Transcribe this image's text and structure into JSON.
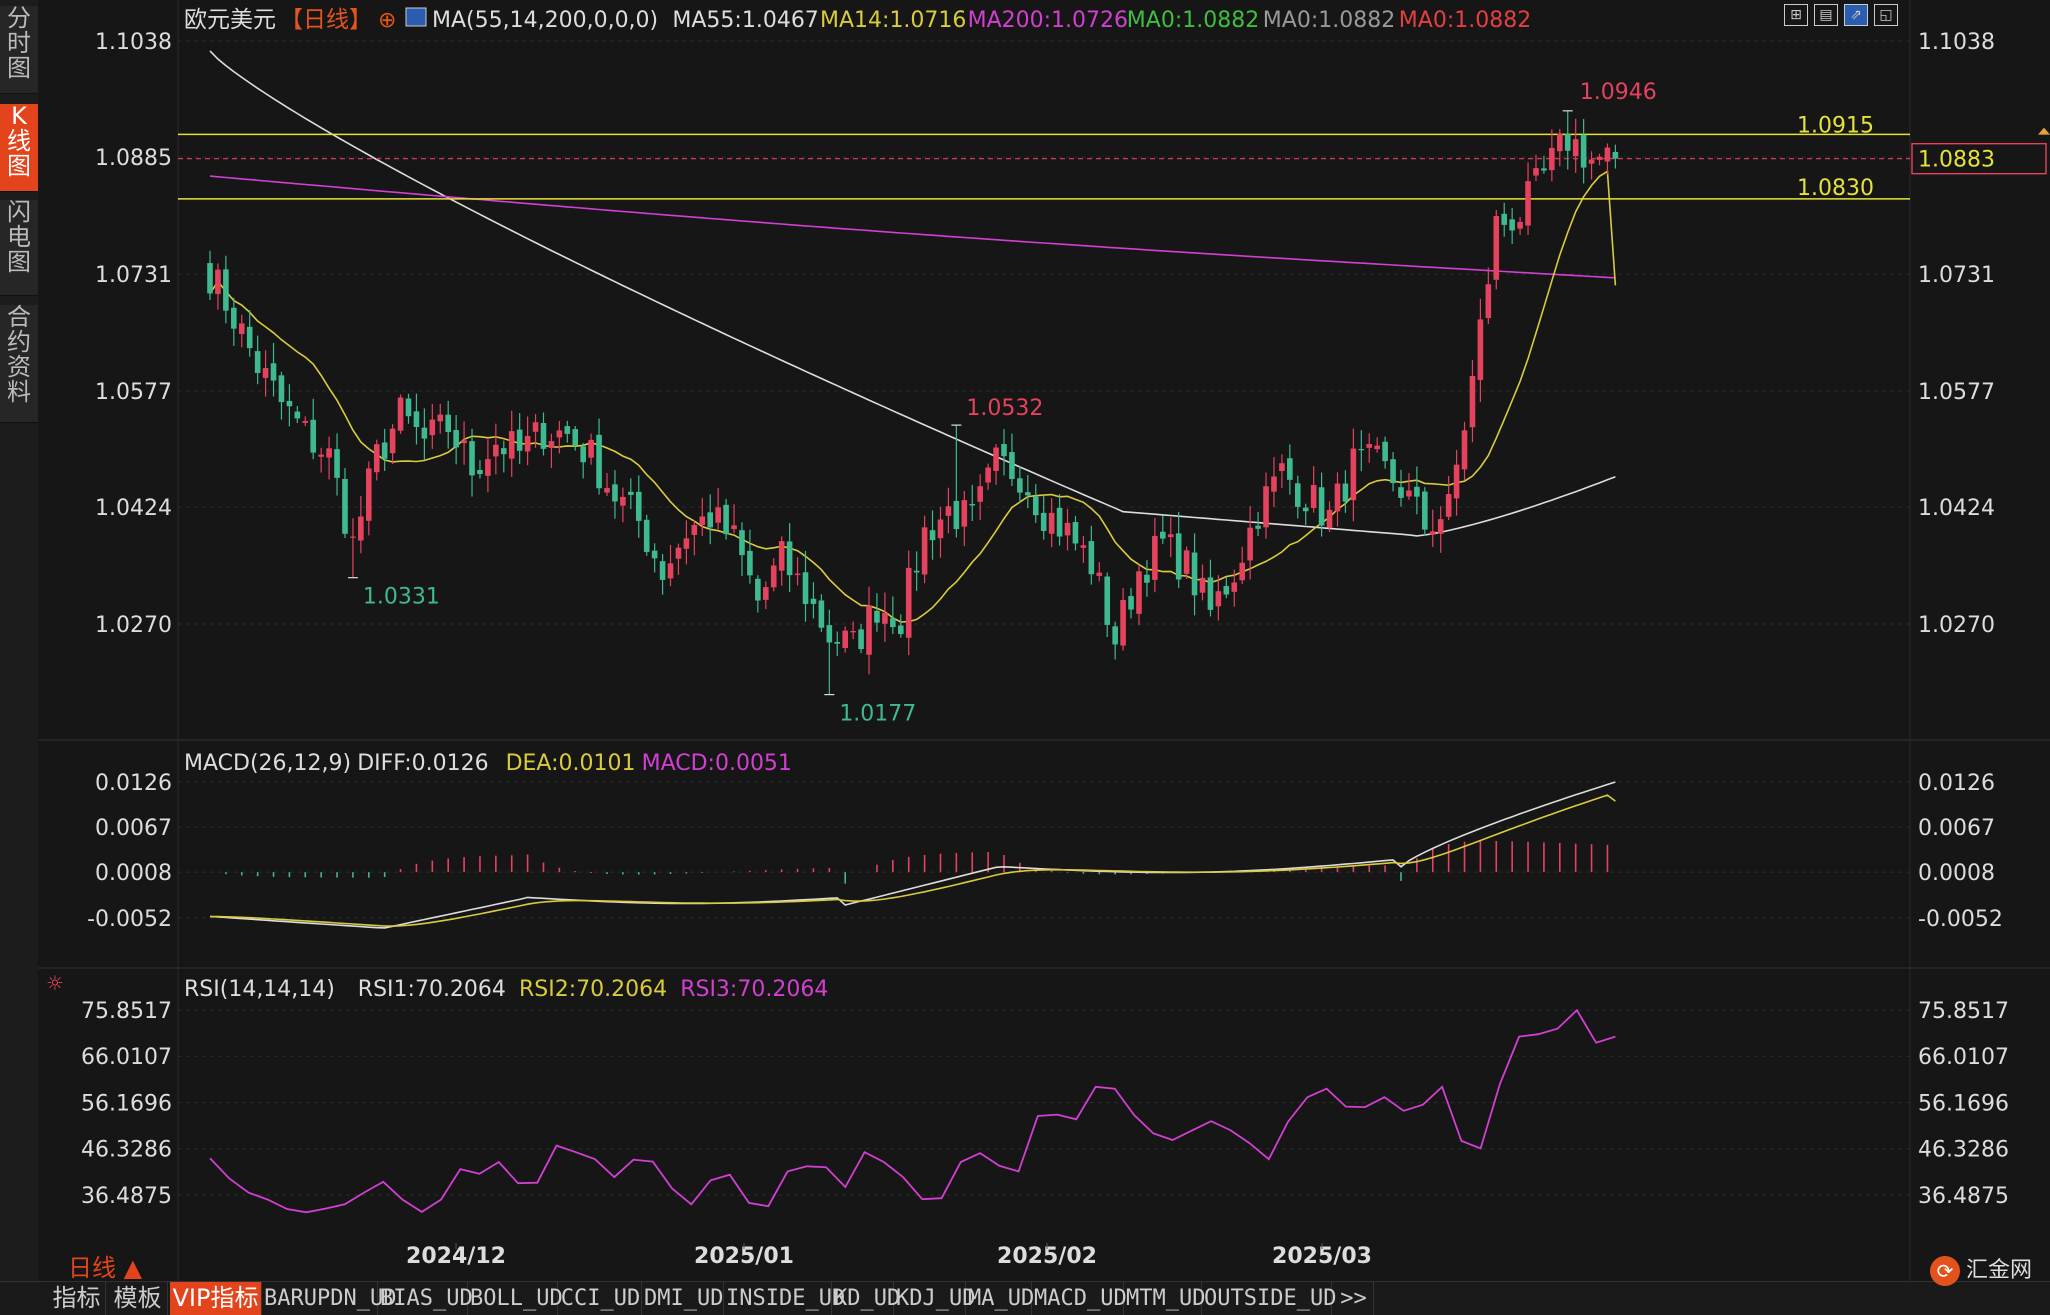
{
  "sidebar": {
    "tabs": [
      {
        "label": "分时图",
        "active": false
      },
      {
        "label": "K线图",
        "active": true
      },
      {
        "label": "闪电图",
        "active": false
      },
      {
        "label": "合约资料",
        "active": false
      }
    ]
  },
  "header": {
    "symbol": "欧元美元",
    "period": "【日线】",
    "ma_params": "MA(55,14,200,0,0,0)",
    "ma55": "MA55:1.0467",
    "ma14": "MA14:1.0716",
    "ma200": "MA200:1.0726",
    "ma0_a": "MA0:1.0882",
    "ma0_b": "MA0:1.0882",
    "ma0_c": "MA0:1.0882"
  },
  "macd_header": {
    "params": "MACD(26,12,9)",
    "diff": "DIFF:0.0126",
    "dea": "DEA:0.0101",
    "macd": "MACD:0.0051"
  },
  "rsi_header": {
    "params": "RSI(14,14,14)",
    "rsi1": "RSI1:70.2064",
    "rsi2": "RSI2:70.2064",
    "rsi3": "RSI3:70.2064"
  },
  "chart_data": [
    {
      "type": "candlestick",
      "price_axis_ticks": [
        "1.1038",
        "1.0885",
        "1.0731",
        "1.0577",
        "1.0424",
        "1.0270"
      ],
      "price_range": [
        1.0177,
        1.1038
      ],
      "current_price": "1.0883",
      "levels": [
        {
          "label": "1.0915",
          "value": 1.0915
        },
        {
          "label": "1.0830",
          "value": 1.083
        }
      ],
      "annotations": [
        {
          "text": "1.0946",
          "value": 1.0946
        },
        {
          "text": "1.0532",
          "value": 1.0532
        },
        {
          "text": "1.0331",
          "value": 1.0331
        },
        {
          "text": "1.0177",
          "value": 1.0177
        }
      ],
      "x_labels": [
        "2024/12",
        "2025/01",
        "2025/02",
        "2025/03"
      ],
      "colors": {
        "up": "#e5425e",
        "down": "#3fb98f",
        "ma55": "#dddddd",
        "ma14": "#d9cc3c",
        "ma200": "#d23fd2",
        "level": "#e6e23a"
      },
      "anchors": [
        [
          0,
          1.0733
        ],
        [
          3,
          1.0675
        ],
        [
          6,
          1.061
        ],
        [
          9,
          1.056
        ],
        [
          12,
          1.052
        ],
        [
          15,
          1.049
        ],
        [
          18,
          1.0375
        ],
        [
          21,
          1.049
        ],
        [
          24,
          1.0545
        ],
        [
          27,
          1.051
        ],
        [
          30,
          1.053
        ],
        [
          33,
          1.0475
        ],
        [
          36,
          1.051
        ],
        [
          39,
          1.0495
        ],
        [
          42,
          1.0525
        ],
        [
          45,
          1.052
        ],
        [
          48,
          1.049
        ],
        [
          51,
          1.044
        ],
        [
          54,
          1.0405
        ],
        [
          57,
          1.034
        ],
        [
          60,
          1.0392
        ],
        [
          63,
          1.0412
        ],
        [
          66,
          1.038
        ],
        [
          69,
          1.03
        ],
        [
          72,
          1.0355
        ],
        [
          75,
          1.031
        ],
        [
          78,
          1.0255
        ],
        [
          81,
          1.024
        ],
        [
          84,
          1.0295
        ],
        [
          87,
          1.028
        ],
        [
          90,
          1.039
        ],
        [
          93,
          1.042
        ],
        [
          96,
          1.0405
        ],
        [
          99,
          1.048
        ],
        [
          102,
          1.047
        ],
        [
          105,
          1.042
        ],
        [
          108,
          1.039
        ],
        [
          111,
          1.035
        ],
        [
          114,
          1.025
        ],
        [
          117,
          1.034
        ],
        [
          120,
          1.0375
        ],
        [
          123,
          1.0345
        ],
        [
          126,
          1.0285
        ],
        [
          129,
          1.034
        ],
        [
          132,
          1.042
        ],
        [
          135,
          1.047
        ],
        [
          138,
          1.044
        ],
        [
          141,
          1.041
        ],
        [
          144,
          1.048
        ],
        [
          147,
          1.048
        ],
        [
          150,
          1.045
        ],
        [
          153,
          1.04
        ],
        [
          156,
          1.042
        ],
        [
          159,
          1.059
        ],
        [
          162,
          1.0795
        ],
        [
          165,
          1.081
        ],
        [
          168,
          1.086
        ],
        [
          171,
          1.091
        ],
        [
          174,
          1.0882
        ],
        [
          177,
          1.0883
        ]
      ]
    },
    {
      "type": "bar",
      "name": "MACD",
      "axis_ticks": [
        "0.0126",
        "0.0067",
        "0.0008",
        "-0.0052"
      ],
      "range": [
        -0.0078,
        0.0126
      ],
      "diff": 0.0126,
      "dea": 0.0101,
      "macd": 0.0051,
      "colors": {
        "diff": "#dddddd",
        "dea": "#d9cc3c",
        "up": "#e5425e",
        "down": "#3fb98f"
      }
    },
    {
      "type": "line",
      "name": "RSI",
      "axis_ticks": [
        "75.8517",
        "66.0107",
        "56.1696",
        "46.3286",
        "36.4875"
      ],
      "range": [
        28.5,
        79
      ],
      "series_values": [
        44.3,
        40,
        37,
        35.5,
        33.5,
        32.8,
        33.6,
        34.5,
        37,
        39.3,
        35.5,
        32.9,
        35.5,
        42,
        41,
        43.5,
        39,
        39.1,
        47,
        45.6,
        44.1,
        40.3,
        44,
        43.6,
        37.9,
        34.5,
        39.6,
        40.8,
        34.8,
        34.1,
        41.5,
        42.6,
        42.4,
        38.2,
        45.6,
        43.5,
        40.3,
        35.6,
        35.8,
        43.5,
        45.4,
        42.7,
        41.5,
        53.3,
        53.6,
        52.6,
        59.5,
        59.1,
        53.5,
        49.6,
        48.2,
        50.2,
        52.2,
        50.3,
        47.5,
        44.1,
        52.1,
        57.3,
        59.1,
        55.3,
        55.2,
        57.3,
        54.4,
        55.7,
        59.5,
        48,
        46.4,
        60.1,
        70.2,
        70.7,
        71.9,
        75.8,
        68.9,
        70.2
      ],
      "colors": {
        "line": "#d23fd2"
      }
    }
  ],
  "bottom_bar": {
    "period_label": "日线 ▲",
    "tabs": [
      {
        "label": "指标",
        "active": false
      },
      {
        "label": "模板",
        "active": false
      },
      {
        "label": "VIP指标",
        "active": true
      },
      {
        "label": "BARUPDN_UD",
        "active": false
      },
      {
        "label": "BIAS_UD",
        "active": false
      },
      {
        "label": "BOLL_UD",
        "active": false
      },
      {
        "label": "CCI_UD",
        "active": false
      },
      {
        "label": "DMI_UD",
        "active": false
      },
      {
        "label": "INSIDE_UD",
        "active": false
      },
      {
        "label": "KD_UD",
        "active": false
      },
      {
        "label": "KDJ_UD",
        "active": false
      },
      {
        "label": "MA_UD",
        "active": false
      },
      {
        "label": "MACD_UD",
        "active": false
      },
      {
        "label": "MTM_UD",
        "active": false
      },
      {
        "label": "OUTSIDE_UD",
        "active": false
      },
      {
        "label": ">>",
        "active": false
      }
    ],
    "logo": "汇金网"
  }
}
